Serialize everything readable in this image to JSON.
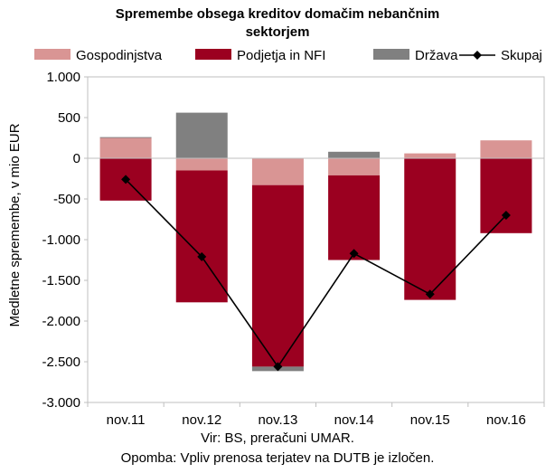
{
  "chart_data": {
    "type": "bar",
    "stacked": true,
    "title_lines": [
      "Spremembe obsega kreditov domačim nebančnim",
      "sektorjem"
    ],
    "ylabel": "Medletne spremembe, v mio EUR",
    "ylim": [
      -3000,
      1000
    ],
    "yticks": [
      1000,
      500,
      0,
      -500,
      -1000,
      -1500,
      -2000,
      -2500,
      -3000
    ],
    "ytick_labels": [
      "1.000",
      "500",
      "0",
      "-500",
      "-1.000",
      "-1.500",
      "-2.000",
      "-2.500",
      "-3.000"
    ],
    "categories": [
      "nov.11",
      "nov.12",
      "nov.13",
      "nov.14",
      "nov.15",
      "nov.16"
    ],
    "legend_position": "top",
    "series": [
      {
        "name": "Gospodinjstva",
        "kind": "bar",
        "color": "#d99594",
        "values": [
          250,
          -150,
          -330,
          -210,
          60,
          220
        ]
      },
      {
        "name": "Podjetja in NFI",
        "kind": "bar",
        "color": "#9b0020",
        "values": [
          -520,
          -1620,
          -2230,
          -1040,
          -1740,
          -920
        ]
      },
      {
        "name": "Država",
        "kind": "bar",
        "color": "#808080",
        "values": [
          10,
          560,
          -55,
          80,
          0,
          0
        ]
      },
      {
        "name": "Skupaj",
        "kind": "line",
        "color": "#000000",
        "marker": "diamond",
        "values": [
          -260,
          -1210,
          -2560,
          -1170,
          -1670,
          -700
        ]
      }
    ],
    "grid": false
  },
  "footer": {
    "source": "Vir: BS, preračuni UMAR.",
    "note": "Opomba: Vpliv prenosa terjatev na DUTB je izločen."
  }
}
